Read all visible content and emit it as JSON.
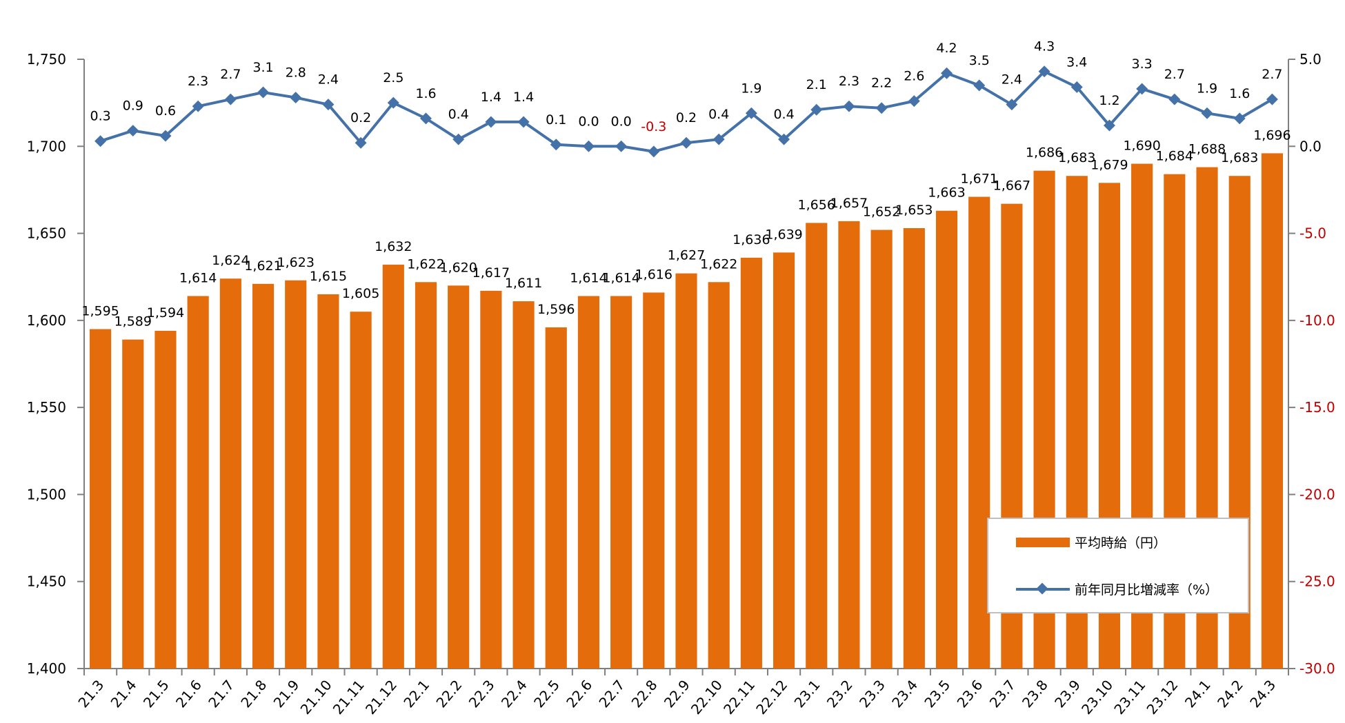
{
  "chart_data": {
    "type": "bar+line",
    "categories": [
      "21.3",
      "21.4",
      "21.5",
      "21.6",
      "21.7",
      "21.8",
      "21.9",
      "21.10",
      "21.11",
      "21.12",
      "22.1",
      "22.2",
      "22.3",
      "22.4",
      "22.5",
      "22.6",
      "22.7",
      "22.8",
      "22.9",
      "22.10",
      "22.11",
      "22.12",
      "23.1",
      "23.2",
      "23.3",
      "23.4",
      "23.5",
      "23.6",
      "23.7",
      "23.8",
      "23.9",
      "23.10",
      "23.11",
      "23.12",
      "24.1",
      "24.2",
      "24.3"
    ],
    "series": [
      {
        "name": "平均時給（円）",
        "type": "bar",
        "axis": "left",
        "color": "#e46c0a",
        "values": [
          1595,
          1589,
          1594,
          1614,
          1624,
          1621,
          1623,
          1615,
          1605,
          1632,
          1622,
          1620,
          1617,
          1611,
          1596,
          1614,
          1614,
          1616,
          1627,
          1622,
          1636,
          1639,
          1656,
          1657,
          1652,
          1653,
          1663,
          1671,
          1667,
          1686,
          1683,
          1679,
          1690,
          1684,
          1688,
          1683,
          1696
        ],
        "labels": [
          "1,595",
          "1,589",
          "1,594",
          "1,614",
          "1,624",
          "1,621",
          "1,623",
          "1,615",
          "1,605",
          "1,632",
          "1,622",
          "1,620",
          "1,617",
          "1,611",
          "1,596",
          "1,614",
          "1,614",
          "1,616",
          "1,627",
          "1,622",
          "1,636",
          "1,639",
          "1,656",
          "1,657",
          "1,652",
          "1,653",
          "1,663",
          "1,671",
          "1,667",
          "1,686",
          "1,683",
          "1,679",
          "1,690",
          "1,684",
          "1,688",
          "1,683",
          "1,696"
        ]
      },
      {
        "name": "前年同月比増減率（%）",
        "type": "line",
        "axis": "right",
        "color": "#4472a8",
        "values": [
          0.3,
          0.9,
          0.6,
          2.3,
          2.7,
          3.1,
          2.8,
          2.4,
          0.2,
          2.5,
          1.6,
          0.4,
          1.4,
          1.4,
          0.1,
          0.0,
          0.0,
          -0.3,
          0.2,
          0.4,
          1.9,
          0.4,
          2.1,
          2.3,
          2.2,
          2.6,
          4.2,
          3.5,
          2.4,
          4.3,
          3.4,
          1.2,
          3.3,
          2.7,
          1.9,
          1.6,
          2.7
        ],
        "labels": [
          "0.3",
          "0.9",
          "0.6",
          "2.3",
          "2.7",
          "3.1",
          "2.8",
          "2.4",
          "0.2",
          "2.5",
          "1.6",
          "0.4",
          "1.4",
          "1.4",
          "0.1",
          "0.0",
          "0.0",
          "-0.3",
          "0.2",
          "0.4",
          "1.9",
          "0.4",
          "2.1",
          "2.3",
          "2.2",
          "2.6",
          "4.2",
          "3.5",
          "2.4",
          "4.3",
          "3.4",
          "1.2",
          "3.3",
          "2.7",
          "1.9",
          "1.6",
          "2.7"
        ]
      }
    ],
    "y_left": {
      "min": 1400,
      "max": 1750,
      "ticks": [
        "1,400",
        "1,450",
        "1,500",
        "1,550",
        "1,600",
        "1,650",
        "1,700",
        "1,750"
      ]
    },
    "y_right": {
      "min": -30,
      "max": 5,
      "ticks": [
        "-30.0",
        "-25.0",
        "-20.0",
        "-15.0",
        "-10.0",
        "-5.0",
        "0.0",
        "5.0"
      ]
    },
    "grid": false,
    "legend": {
      "position": "bottom-right",
      "entries": [
        "平均時給（円）",
        "前年同月比増減率（%）"
      ]
    },
    "negative_label_color": "#c00000"
  }
}
